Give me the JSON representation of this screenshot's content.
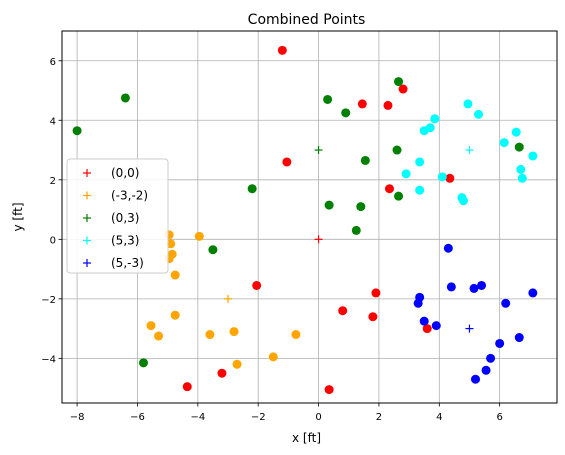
{
  "chart_data": {
    "type": "scatter",
    "title": "Combined Points",
    "xlabel": "x [ft]",
    "ylabel": "y [ft]",
    "xlim": [
      -8.5,
      7.9
    ],
    "ylim": [
      -5.5,
      7.0
    ],
    "xticks": [
      -8,
      -6,
      -4,
      -2,
      0,
      2,
      4,
      6
    ],
    "yticks": [
      -4,
      -2,
      0,
      2,
      4,
      6
    ],
    "grid": true,
    "legend_position": "center-left",
    "series": [
      {
        "name": "(0,0)",
        "color": "#ff0000",
        "center": [
          0,
          0
        ],
        "points": [
          [
            -1.2,
            6.35
          ],
          [
            -1.05,
            2.6
          ],
          [
            1.45,
            4.55
          ],
          [
            2.3,
            4.5
          ],
          [
            2.8,
            5.05
          ],
          [
            2.35,
            1.7
          ],
          [
            4.35,
            2.05
          ],
          [
            -2.05,
            -1.55
          ],
          [
            1.9,
            -1.8
          ],
          [
            0.8,
            -2.4
          ],
          [
            1.8,
            -2.6
          ],
          [
            3.6,
            -3.0
          ],
          [
            -3.2,
            -4.5
          ],
          [
            -4.35,
            -4.95
          ],
          [
            0.35,
            -5.05
          ]
        ]
      },
      {
        "name": "(-3,-2)",
        "color": "#ffa500",
        "center": [
          -3,
          -2
        ],
        "points": [
          [
            -4.95,
            0.15
          ],
          [
            -3.95,
            0.1
          ],
          [
            -4.9,
            -0.15
          ],
          [
            -4.85,
            -0.5
          ],
          [
            -4.95,
            -0.65
          ],
          [
            -4.75,
            -1.2
          ],
          [
            -4.75,
            -2.55
          ],
          [
            -5.55,
            -2.9
          ],
          [
            -5.3,
            -3.25
          ],
          [
            -3.6,
            -3.2
          ],
          [
            -2.8,
            -3.1
          ],
          [
            -0.75,
            -3.2
          ],
          [
            -1.5,
            -3.95
          ],
          [
            -2.7,
            -4.2
          ]
        ]
      },
      {
        "name": "(0,3)",
        "color": "#008000",
        "center": [
          0,
          3
        ],
        "points": [
          [
            -8.0,
            3.65
          ],
          [
            -6.4,
            4.75
          ],
          [
            0.3,
            4.7
          ],
          [
            0.9,
            4.25
          ],
          [
            2.65,
            5.3
          ],
          [
            -2.2,
            1.7
          ],
          [
            1.55,
            2.65
          ],
          [
            2.6,
            3.0
          ],
          [
            2.65,
            1.45
          ],
          [
            0.35,
            1.15
          ],
          [
            1.4,
            1.1
          ],
          [
            1.25,
            0.3
          ],
          [
            -3.5,
            -0.35
          ],
          [
            6.65,
            3.1
          ],
          [
            -5.8,
            -4.15
          ]
        ]
      },
      {
        "name": "(5,3)",
        "color": "#00ffff",
        "center": [
          5,
          3
        ],
        "points": [
          [
            4.95,
            4.55
          ],
          [
            3.85,
            4.05
          ],
          [
            3.7,
            3.75
          ],
          [
            3.5,
            3.65
          ],
          [
            5.3,
            4.2
          ],
          [
            6.55,
            3.6
          ],
          [
            6.15,
            3.25
          ],
          [
            3.35,
            2.6
          ],
          [
            4.1,
            2.1
          ],
          [
            2.9,
            2.2
          ],
          [
            6.7,
            2.35
          ],
          [
            6.75,
            2.05
          ],
          [
            7.1,
            2.8
          ],
          [
            3.35,
            1.65
          ],
          [
            4.75,
            1.4
          ],
          [
            4.8,
            1.3
          ]
        ]
      },
      {
        "name": "(5,-3)",
        "color": "#0000ff",
        "center": [
          5,
          -3
        ],
        "points": [
          [
            4.3,
            -0.3
          ],
          [
            4.4,
            -1.6
          ],
          [
            5.15,
            -1.65
          ],
          [
            5.4,
            -1.55
          ],
          [
            7.1,
            -1.8
          ],
          [
            6.2,
            -2.15
          ],
          [
            3.3,
            -2.15
          ],
          [
            3.35,
            -1.95
          ],
          [
            3.5,
            -2.75
          ],
          [
            3.9,
            -2.9
          ],
          [
            6.65,
            -3.3
          ],
          [
            6.0,
            -3.5
          ],
          [
            5.7,
            -4.0
          ],
          [
            5.55,
            -4.4
          ],
          [
            5.2,
            -4.7
          ]
        ]
      }
    ]
  }
}
